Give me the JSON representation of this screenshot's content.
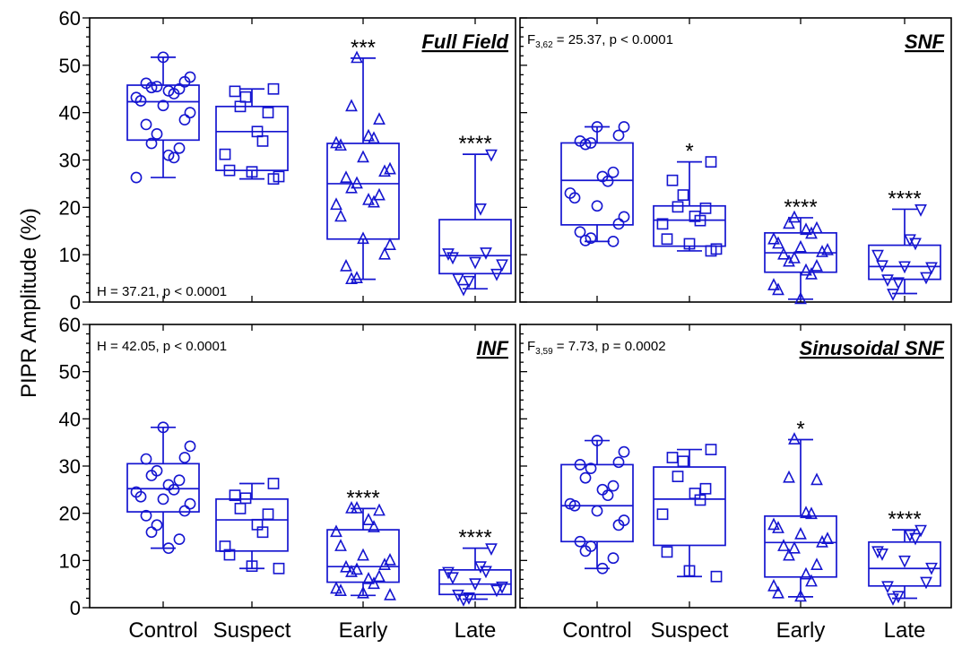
{
  "y_axis_label": "PIPR Amplitude (%)",
  "colors": {
    "marker": "#1515d0",
    "axis": "#000000"
  },
  "chart_data": [
    {
      "type": "box",
      "title": "Full Field",
      "stat_prefix": "H",
      "stat_sub": "",
      "stat_rest": " = 37.21, p < 0.0001",
      "stat_pos": "bottom-left",
      "categories": [
        "Control",
        "Suspect",
        "Early",
        "Late"
      ],
      "ylim": [
        0,
        60
      ],
      "yticks": [
        0,
        10,
        20,
        30,
        40,
        50,
        60
      ],
      "boxes": [
        {
          "min": 26.3,
          "q1": 34.2,
          "median": 42.3,
          "q3": 45.8,
          "max": 51.7,
          "marker": "circle",
          "sig": "",
          "points": [
            51.7,
            47.5,
            46.5,
            46.2,
            45.5,
            45.3,
            45.0,
            44.6,
            44.0,
            43.2,
            42.5,
            41.5,
            40.0,
            38.5,
            37.5,
            35.5,
            33.5,
            32.5,
            31.0,
            30.5,
            26.3
          ]
        },
        {
          "min": 26.0,
          "q1": 27.8,
          "median": 36.0,
          "q3": 41.3,
          "max": 45.0,
          "marker": "square",
          "sig": "",
          "points": [
            45.0,
            44.5,
            43.3,
            41.3,
            40.0,
            36.0,
            34.0,
            31.2,
            27.8,
            27.5,
            26.5,
            26.0
          ]
        },
        {
          "min": 4.8,
          "q1": 13.3,
          "median": 25.0,
          "q3": 33.5,
          "max": 51.5,
          "marker": "triangle",
          "sig": "***",
          "points": [
            51.5,
            41.3,
            38.5,
            35.0,
            34.5,
            33.5,
            33.0,
            30.5,
            28.0,
            27.5,
            26.2,
            25.0,
            24.0,
            22.5,
            21.5,
            21.0,
            20.5,
            18.0,
            13.3,
            12.0,
            10.0,
            7.5,
            5.0,
            4.8
          ]
        },
        {
          "min": 2.8,
          "q1": 6.0,
          "median": 9.8,
          "q3": 17.4,
          "max": 31.2,
          "marker": "triangle-down",
          "sig": "****",
          "points": [
            31.2,
            19.8,
            10.5,
            10.3,
            9.5,
            8.5,
            8.0,
            6.0,
            5.0,
            4.5,
            2.8
          ]
        }
      ]
    },
    {
      "type": "box",
      "title": "SNF",
      "stat_prefix": "F",
      "stat_sub": "3,62",
      "stat_rest": " = 25.37, p < 0.0001",
      "stat_pos": "top-left",
      "categories": [
        "Control",
        "Suspect",
        "Early",
        "Late"
      ],
      "ylim": [
        0,
        60
      ],
      "yticks": [
        0,
        10,
        20,
        30,
        40,
        50,
        60
      ],
      "boxes": [
        {
          "min": 12.8,
          "q1": 16.3,
          "median": 25.7,
          "q3": 33.6,
          "max": 37.0,
          "marker": "circle",
          "sig": "",
          "points": [
            37.0,
            37.0,
            35.2,
            34.0,
            33.6,
            33.3,
            27.4,
            26.5,
            25.5,
            23.0,
            22.0,
            20.3,
            18.0,
            16.5,
            14.8,
            13.5,
            13.0,
            12.8
          ]
        },
        {
          "min": 10.8,
          "q1": 11.8,
          "median": 17.3,
          "q3": 20.3,
          "max": 29.6,
          "marker": "square",
          "sig": "*",
          "points": [
            29.6,
            25.7,
            22.6,
            20.1,
            19.8,
            18.1,
            17.2,
            16.5,
            13.3,
            12.3,
            11.2,
            10.8
          ]
        },
        {
          "min": 0.6,
          "q1": 6.3,
          "median": 10.4,
          "q3": 14.6,
          "max": 17.8,
          "marker": "triangle",
          "sig": "****",
          "points": [
            17.8,
            16.5,
            15.5,
            15.2,
            14.4,
            13.2,
            12.3,
            11.5,
            10.9,
            10.5,
            10.0,
            9.2,
            8.5,
            7.5,
            6.6,
            5.8,
            3.5,
            2.5,
            0.6
          ]
        },
        {
          "min": 1.8,
          "q1": 4.8,
          "median": 7.5,
          "q3": 12.0,
          "max": 19.6,
          "marker": "triangle-down",
          "sig": "****",
          "points": [
            19.6,
            13.3,
            12.5,
            10.0,
            7.8,
            7.6,
            7.4,
            5.3,
            4.8,
            4.2,
            1.8
          ]
        }
      ]
    },
    {
      "type": "box",
      "title": "INF",
      "stat_prefix": "H",
      "stat_sub": "",
      "stat_rest": " = 42.05, p < 0.0001",
      "stat_pos": "top-left",
      "categories": [
        "Control",
        "Suspect",
        "Early",
        "Late"
      ],
      "ylim": [
        0,
        60
      ],
      "yticks": [
        0,
        10,
        20,
        30,
        40,
        50,
        60
      ],
      "boxes": [
        {
          "min": 12.6,
          "q1": 20.3,
          "median": 25.2,
          "q3": 30.5,
          "max": 38.2,
          "marker": "circle",
          "sig": "",
          "points": [
            38.2,
            34.2,
            31.8,
            31.5,
            29.0,
            28.0,
            27.0,
            26.0,
            25.0,
            24.5,
            23.5,
            23.0,
            22.0,
            20.5,
            19.5,
            17.5,
            16.0,
            14.5,
            12.6
          ]
        },
        {
          "min": 8.3,
          "q1": 12.0,
          "median": 18.6,
          "q3": 23.0,
          "max": 26.3,
          "marker": "square",
          "sig": "",
          "points": [
            26.3,
            23.8,
            23.2,
            21.0,
            19.8,
            17.6,
            16.0,
            13.0,
            11.2,
            8.8,
            8.3
          ]
        },
        {
          "min": 2.6,
          "q1": 5.4,
          "median": 8.7,
          "q3": 16.5,
          "max": 21.0,
          "marker": "triangle",
          "sig": "****",
          "points": [
            21.0,
            21.0,
            20.5,
            18.5,
            17.0,
            16.0,
            13.0,
            11.0,
            10.0,
            9.0,
            8.5,
            8.0,
            7.5,
            6.5,
            6.0,
            5.0,
            4.0,
            3.5,
            3.0,
            2.6
          ]
        },
        {
          "min": 1.8,
          "q1": 2.8,
          "median": 5.0,
          "q3": 8.0,
          "max": 12.6,
          "marker": "triangle-down",
          "sig": "****",
          "points": [
            12.6,
            8.8,
            7.8,
            7.6,
            6.5,
            5.2,
            4.5,
            3.8,
            2.8,
            2.2,
            1.8
          ]
        }
      ]
    },
    {
      "type": "box",
      "title": "Sinusoidal SNF",
      "stat_prefix": "F",
      "stat_sub": "3,59",
      "stat_rest": " = 7.73, p = 0.0002",
      "stat_pos": "top-left",
      "categories": [
        "Control",
        "Suspect",
        "Early",
        "Late"
      ],
      "ylim": [
        0,
        60
      ],
      "yticks": [
        0,
        10,
        20,
        30,
        40,
        50,
        60
      ],
      "boxes": [
        {
          "min": 8.3,
          "q1": 14.0,
          "median": 21.6,
          "q3": 30.3,
          "max": 35.4,
          "marker": "circle",
          "sig": "",
          "points": [
            35.4,
            33.0,
            30.8,
            30.3,
            29.5,
            27.5,
            25.8,
            25.0,
            23.8,
            22.0,
            21.6,
            20.5,
            18.5,
            17.5,
            14.0,
            13.0,
            12.0,
            10.5,
            8.3
          ]
        },
        {
          "min": 6.6,
          "q1": 13.2,
          "median": 23.0,
          "q3": 29.8,
          "max": 33.5,
          "marker": "square",
          "sig": "",
          "points": [
            33.5,
            31.8,
            31.0,
            27.8,
            25.2,
            24.2,
            22.8,
            19.8,
            11.8,
            7.8,
            6.6
          ]
        },
        {
          "min": 2.3,
          "q1": 6.5,
          "median": 13.8,
          "q3": 19.4,
          "max": 35.6,
          "marker": "triangle",
          "sig": "*",
          "points": [
            35.6,
            27.5,
            27.0,
            20.0,
            19.8,
            17.5,
            16.8,
            15.5,
            14.5,
            13.8,
            13.0,
            12.5,
            11.0,
            9.0,
            7.0,
            5.5,
            4.5,
            3.0,
            2.3
          ]
        },
        {
          "min": 2.0,
          "q1": 4.6,
          "median": 8.3,
          "q3": 13.9,
          "max": 16.5,
          "marker": "triangle-down",
          "sig": "****",
          "points": [
            16.5,
            15.5,
            14.8,
            12.0,
            11.5,
            10.0,
            8.5,
            5.5,
            4.6,
            2.5,
            2.0
          ]
        }
      ]
    }
  ]
}
